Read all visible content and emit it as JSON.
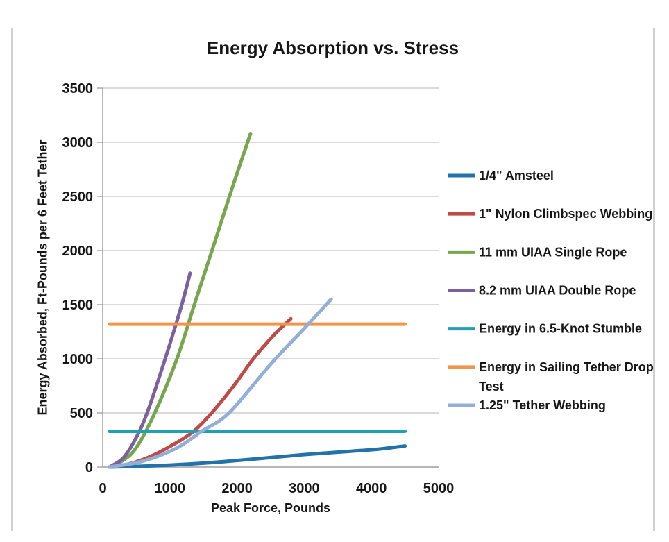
{
  "chart_data": {
    "type": "line",
    "title": "Energy Absorption vs. Stress",
    "xlabel": "Peak Force, Pounds",
    "ylabel": "Energy Absorbed, Ft-Pounds per 6 Feet Tether",
    "xlim": [
      0,
      5000
    ],
    "ylim": [
      0,
      3500
    ],
    "xticks": [
      0,
      1000,
      2000,
      3000,
      4000,
      5000
    ],
    "yticks": [
      0,
      500,
      1000,
      1500,
      2000,
      2500,
      3000,
      3500
    ],
    "grid": "horizontal",
    "legend_position": "right",
    "grid_color": "#C3C3C3",
    "axis_color": "#9E9E9E",
    "frame_border_color": "#A0A0A0",
    "series": [
      {
        "name": "1/4\" Amsteel",
        "color": "#2173A8",
        "points": [
          [
            100,
            0
          ],
          [
            600,
            8
          ],
          [
            1200,
            25
          ],
          [
            1800,
            50
          ],
          [
            2400,
            82
          ],
          [
            3000,
            115
          ],
          [
            3600,
            142
          ],
          [
            4100,
            165
          ],
          [
            4500,
            195
          ]
        ]
      },
      {
        "name": "1\" Nylon Climbspec Webbing",
        "color": "#BE4B48",
        "points": [
          [
            100,
            0
          ],
          [
            400,
            30
          ],
          [
            700,
            95
          ],
          [
            1000,
            190
          ],
          [
            1333,
            320
          ],
          [
            1622,
            500
          ],
          [
            1950,
            750
          ],
          [
            2242,
            1000
          ],
          [
            2550,
            1220
          ],
          [
            2800,
            1370
          ]
        ]
      },
      {
        "name": "11 mm UIAA Single Rope",
        "color": "#77A64E",
        "points": [
          [
            100,
            0
          ],
          [
            300,
            60
          ],
          [
            500,
            180
          ],
          [
            775,
            500
          ],
          [
            1105,
            1000
          ],
          [
            1364,
            1500
          ],
          [
            1700,
            2140
          ],
          [
            1950,
            2620
          ],
          [
            2200,
            3080
          ]
        ]
      },
      {
        "name": "8.2 mm UIAA Double Rope",
        "color": "#7D609E",
        "points": [
          [
            100,
            0
          ],
          [
            300,
            80
          ],
          [
            480,
            250
          ],
          [
            661,
            500
          ],
          [
            930,
            1000
          ],
          [
            1177,
            1500
          ],
          [
            1300,
            1790
          ]
        ]
      },
      {
        "name": "Energy in 6.5-Knot Stumble",
        "color": "#1FA0B5",
        "points": [
          [
            100,
            330
          ],
          [
            4500,
            330
          ]
        ]
      },
      {
        "name": "Energy in Sailing Tether Drop Test",
        "legend_lines": [
          "Energy in Sailing Tether Drop",
          "Test"
        ],
        "color": "#F0964B",
        "points": [
          [
            100,
            1320
          ],
          [
            4500,
            1320
          ]
        ]
      },
      {
        "name": "1.25\" Tether Webbing",
        "color": "#92AFD7",
        "points": [
          [
            100,
            0
          ],
          [
            600,
            55
          ],
          [
            1100,
            175
          ],
          [
            1470,
            330
          ],
          [
            1880,
            500
          ],
          [
            2500,
            950
          ],
          [
            3000,
            1280
          ],
          [
            3400,
            1550
          ]
        ]
      }
    ]
  }
}
